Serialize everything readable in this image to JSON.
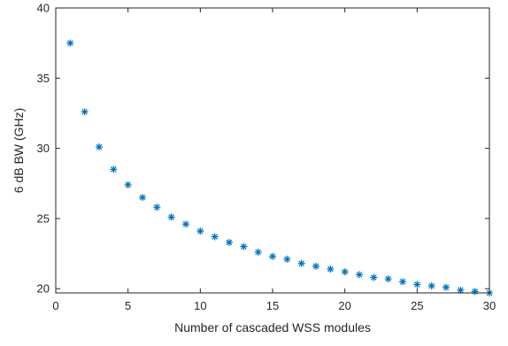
{
  "chart_data": {
    "type": "scatter",
    "title": "",
    "xlabel": "Number of cascaded WSS modules",
    "ylabel": "6 dB BW (GHz)",
    "xlim": [
      0,
      30
    ],
    "ylim": [
      19.7,
      40
    ],
    "grid": false,
    "marker": "asterisk",
    "series_color": "#0072BD",
    "xticks": [
      0,
      5,
      10,
      15,
      20,
      25,
      30
    ],
    "yticks": [
      20,
      25,
      30,
      35,
      40
    ],
    "x": [
      1,
      2,
      3,
      4,
      5,
      6,
      7,
      8,
      9,
      10,
      11,
      12,
      13,
      14,
      15,
      16,
      17,
      18,
      19,
      20,
      21,
      22,
      23,
      24,
      25,
      26,
      27,
      28,
      29,
      30
    ],
    "y": [
      37.5,
      32.6,
      30.1,
      28.5,
      27.4,
      26.5,
      25.8,
      25.1,
      24.6,
      24.1,
      23.7,
      23.3,
      23.0,
      22.6,
      22.3,
      22.1,
      21.8,
      21.6,
      21.4,
      21.2,
      21.0,
      20.8,
      20.7,
      20.5,
      20.3,
      20.2,
      20.1,
      19.9,
      19.8,
      19.7
    ]
  }
}
